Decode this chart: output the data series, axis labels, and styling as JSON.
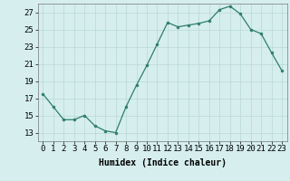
{
  "x": [
    0,
    1,
    2,
    3,
    4,
    5,
    6,
    7,
    8,
    9,
    10,
    11,
    12,
    13,
    14,
    15,
    16,
    17,
    18,
    19,
    20,
    21,
    22,
    23
  ],
  "y": [
    17.5,
    16.0,
    14.5,
    14.5,
    15.0,
    13.8,
    13.2,
    13.0,
    16.0,
    18.5,
    20.8,
    23.3,
    25.8,
    25.3,
    25.5,
    25.7,
    26.0,
    27.3,
    27.7,
    26.8,
    25.0,
    24.5,
    22.3,
    20.2
  ],
  "line_color": "#2e7d6e",
  "marker": "o",
  "marker_size": 2.0,
  "bg_color": "#d6eeee",
  "grid_color": "#b8d8d8",
  "xlabel": "Humidex (Indice chaleur)",
  "ylim": [
    12,
    28
  ],
  "xlim": [
    -0.5,
    23.5
  ],
  "yticks": [
    13,
    15,
    17,
    19,
    21,
    23,
    25,
    27
  ],
  "xtick_labels": [
    "0",
    "1",
    "2",
    "3",
    "4",
    "5",
    "6",
    "7",
    "8",
    "9",
    "10",
    "11",
    "12",
    "13",
    "14",
    "15",
    "16",
    "17",
    "18",
    "19",
    "20",
    "21",
    "22",
    "23"
  ],
  "axis_fontsize": 6.5,
  "label_fontsize": 7.0
}
